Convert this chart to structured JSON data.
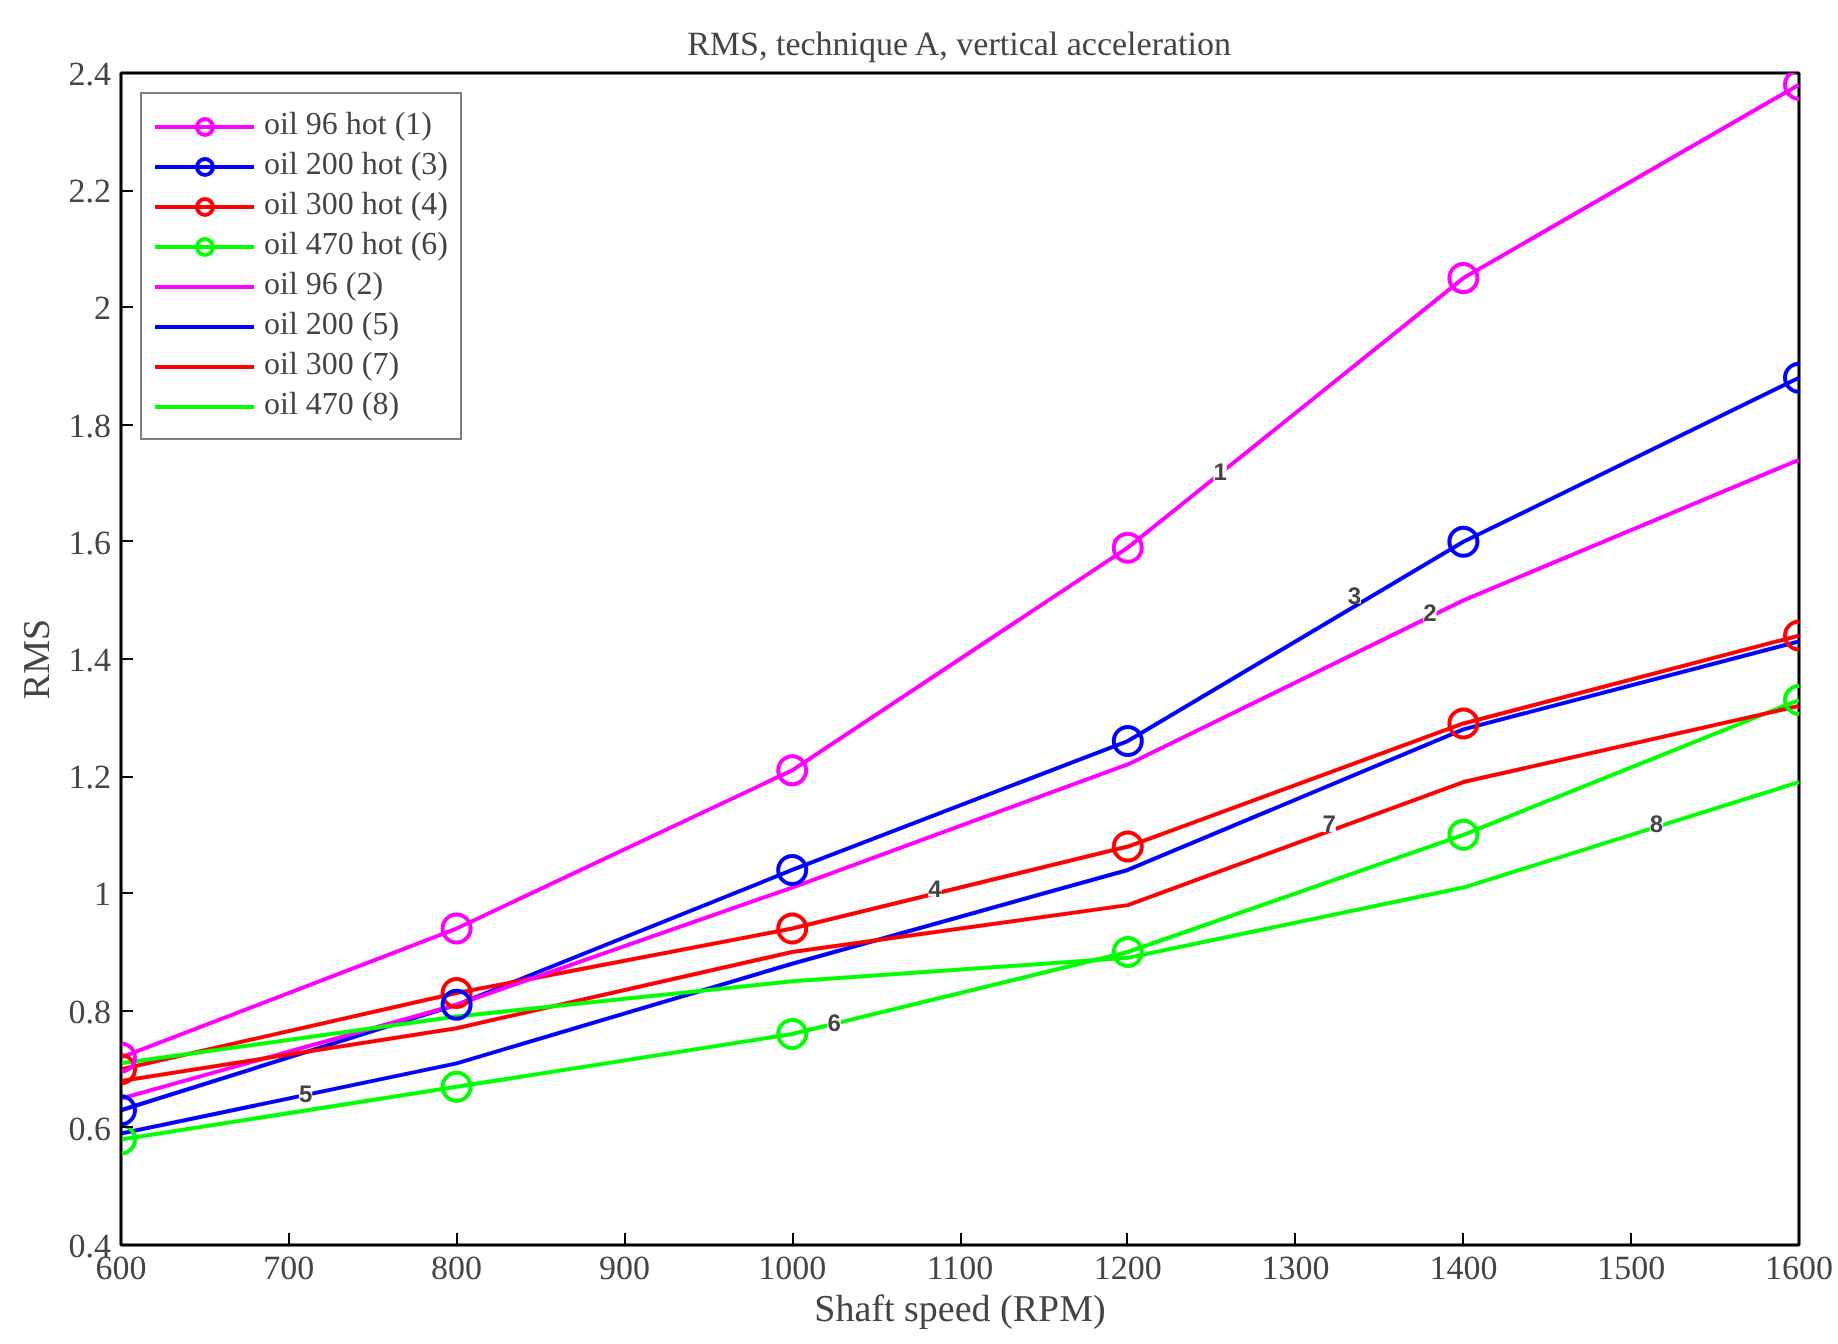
{
  "chart_data": {
    "type": "line",
    "title": "RMS, technique A, vertical acceleration",
    "xlabel": "Shaft speed (RPM)",
    "ylabel": "RMS",
    "x": [
      600,
      800,
      1000,
      1200,
      1400,
      1600
    ],
    "series": [
      {
        "name": "oil 96 hot (1)",
        "color": "#ff00ff",
        "marker": "circle",
        "values": [
          0.72,
          0.94,
          1.21,
          1.59,
          2.05,
          2.38
        ]
      },
      {
        "name": "oil 200 hot (3)",
        "color": "#0000ff",
        "marker": "circle",
        "values": [
          0.63,
          0.81,
          1.04,
          1.26,
          1.6,
          1.88
        ]
      },
      {
        "name": "oil 300 hot (4)",
        "color": "#ff0000",
        "marker": "circle",
        "values": [
          0.7,
          0.83,
          0.94,
          1.08,
          1.29,
          1.44
        ]
      },
      {
        "name": "oil 470 hot (6)",
        "color": "#00ff00",
        "marker": "circle",
        "values": [
          0.58,
          0.67,
          0.76,
          0.9,
          1.1,
          1.33
        ]
      },
      {
        "name": "oil 96 (2)",
        "color": "#ff00ff",
        "marker": "none",
        "values": [
          0.65,
          0.81,
          1.01,
          1.22,
          1.5,
          1.74
        ]
      },
      {
        "name": "oil 200 (5)",
        "color": "#0000ff",
        "marker": "none",
        "values": [
          0.59,
          0.71,
          0.88,
          1.04,
          1.28,
          1.43
        ]
      },
      {
        "name": "oil 300 (7)",
        "color": "#ff0000",
        "marker": "none",
        "values": [
          0.68,
          0.77,
          0.9,
          0.98,
          1.19,
          1.32
        ]
      },
      {
        "name": "oil 470 (8)",
        "color": "#00ff00",
        "marker": "none",
        "values": [
          0.71,
          0.79,
          0.85,
          0.89,
          1.01,
          1.19
        ]
      }
    ],
    "annotations": [
      {
        "text": "1",
        "x": 1255,
        "y": 1.72
      },
      {
        "text": "2",
        "x": 1380,
        "y": 1.48
      },
      {
        "text": "3",
        "x": 1335,
        "y": 1.51
      },
      {
        "text": "4",
        "x": 1085,
        "y": 1.01
      },
      {
        "text": "5",
        "x": 710,
        "y": 0.66
      },
      {
        "text": "6",
        "x": 1025,
        "y": 0.78
      },
      {
        "text": "7",
        "x": 1320,
        "y": 1.12
      },
      {
        "text": "8",
        "x": 1515,
        "y": 1.12
      }
    ],
    "xlim": [
      600,
      1600
    ],
    "ylim": [
      0.4,
      2.4
    ],
    "xticks": [
      600,
      700,
      800,
      900,
      1000,
      1100,
      1200,
      1300,
      1400,
      1500,
      1600
    ],
    "yticks": [
      0.4,
      0.6,
      0.8,
      1,
      1.2,
      1.4,
      1.6,
      1.8,
      2,
      2.2,
      2.4
    ],
    "grid": false,
    "legend": "top left",
    "line_style": "solid"
  }
}
